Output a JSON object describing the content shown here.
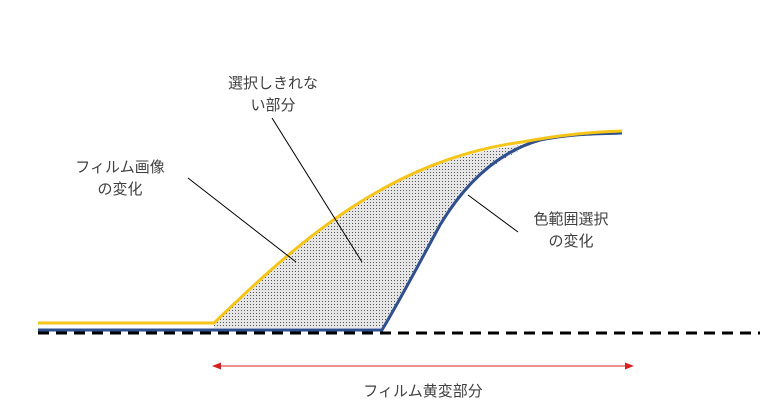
{
  "labels": {
    "unselected": [
      "選択しきれな",
      "い部分"
    ],
    "film_change": [
      "フィルム画像",
      "の変化"
    ],
    "color_range_change": [
      "色範囲選択",
      "の変化"
    ],
    "film_yellowing": "フィルム黄変部分"
  },
  "colors": {
    "film_curve": "#f5c518",
    "color_range_curve": "#2f4f8f",
    "baseline": "#000000",
    "arrow": "#d42020",
    "leader_line": "#000000",
    "shaded_fill": "#e6e6e6",
    "shaded_dots": "#555555",
    "text": "#404040"
  }
}
